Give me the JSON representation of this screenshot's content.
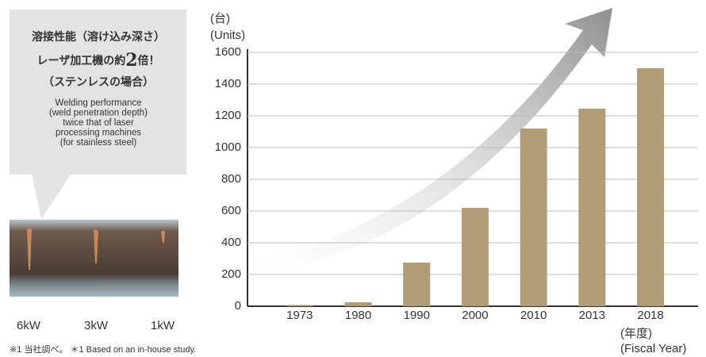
{
  "panel": {
    "headline_1": "溶接性能（溶け込み深さ）",
    "headline_2a": "レーザ加工機の約",
    "headline_2b": "2",
    "headline_2c": "倍！",
    "headline_3": "（ステンレスの場合）",
    "description": [
      "Welding performance",
      "(weld penetration depth)",
      "twice that of laser",
      "processing machines",
      "(for stainless steel)"
    ]
  },
  "photo_labels": [
    "6kW",
    "3kW",
    "1kW"
  ],
  "footnote": "※1 当社調べ。 ＊1 Based on an in-house study.",
  "chart_data": {
    "type": "bar",
    "y_label": [
      "(台)",
      "(Units)"
    ],
    "x_label": [
      "(年度)",
      "(Fiscal Year)"
    ],
    "categories": [
      "1973",
      "1980",
      "1990",
      "2000",
      "2010",
      "2013",
      "2018"
    ],
    "values": [
      8,
      25,
      275,
      620,
      1120,
      1245,
      1500
    ],
    "color": "#b09d78",
    "ylim": [
      0,
      1600
    ],
    "yticks": [
      0,
      200,
      400,
      600,
      800,
      1000,
      1200,
      1400,
      1600
    ],
    "grid": true
  }
}
